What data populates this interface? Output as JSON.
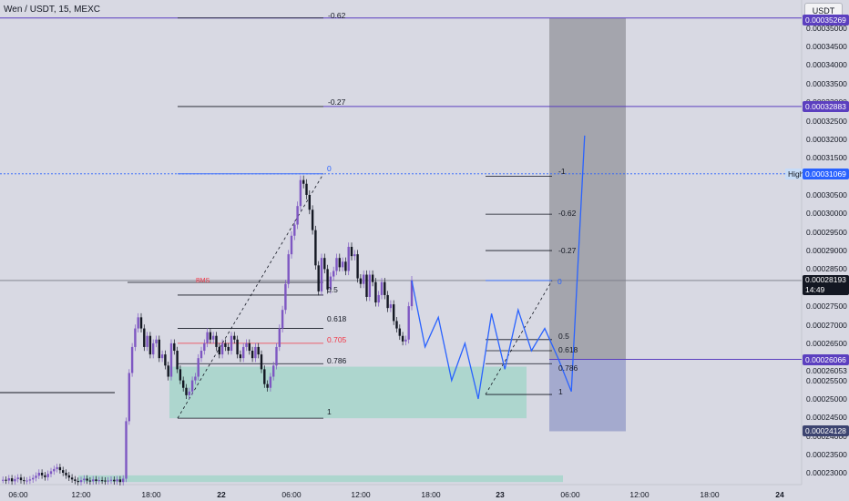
{
  "header": {
    "title": "Wen / USDT, 15, MEXC"
  },
  "toolbar": {
    "currency_button": "USDT"
  },
  "axis": {
    "price_ticks": [
      "0.00035000",
      "0.00034500",
      "0.00034000",
      "0.00033500",
      "0.00033000",
      "0.00032500",
      "0.00032000",
      "0.00031500",
      "0.00031000",
      "0.00030500",
      "0.00030000",
      "0.00029500",
      "0.00029000",
      "0.00028500",
      "0.00028000",
      "0.00027500",
      "0.00027000",
      "0.00026500",
      "0.00026000",
      "0.00025500",
      "0.00025000",
      "0.00024500",
      "0.00024000",
      "0.00023500",
      "0.00023000"
    ],
    "time_ticks": [
      "06:00",
      "12:00",
      "18:00",
      "22",
      "06:00",
      "12:00",
      "18:00",
      "23",
      "06:00",
      "12:00",
      "18:00",
      "24"
    ]
  },
  "price_tags": {
    "top": "0.00035269",
    "upper_target": "0.00032883",
    "high": "0.00031069",
    "high_label": "High",
    "current_price": "0.00028193",
    "countdown": "14:49",
    "entry": "0.00026066",
    "entry_alt": "0.00026053",
    "stop": "0.00024128"
  },
  "fib_big": {
    "levels": [
      "-0.62",
      "-0.27",
      "0",
      "0.5",
      "0.618",
      "0.705",
      "0.786",
      "1"
    ]
  },
  "fib_small": {
    "levels": [
      "-1",
      "-0.62",
      "-0.27",
      "0",
      "0.5",
      "0.618",
      "0.786",
      "1"
    ]
  },
  "annotations": {
    "bms": "BMS"
  },
  "colors": {
    "up": "#7e57c2",
    "down": "#131722",
    "line": "#2962ff",
    "zone": "#a8d5cb",
    "accent": "#5b3fbf"
  },
  "chart_data": {
    "type": "candlestick",
    "title": "Wen / USDT, 15, MEXC",
    "ylim": [
      0.0002275,
      0.000354
    ],
    "x_labels": [
      "06:00",
      "12:00",
      "18:00",
      "22",
      "06:00",
      "12:00",
      "18:00",
      "23",
      "06:00",
      "12:00",
      "18:00",
      "24"
    ],
    "close_path": [
      0.0002282,
      0.000228,
      0.0002286,
      0.0002278,
      0.0002284,
      0.0002288,
      0.0002281,
      0.0002279,
      0.000228,
      0.0002283,
      0.0002287,
      0.0002293,
      0.0002301,
      0.0002294,
      0.0002289,
      0.0002298,
      0.0002305,
      0.0002311,
      0.0002316,
      0.0002308,
      0.0002301,
      0.0002294,
      0.0002288,
      0.0002283,
      0.0002279,
      0.0002276,
      0.0002281,
      0.0002285,
      0.000228,
      0.0002278,
      0.0002283,
      0.0002279,
      0.0002281,
      0.000228,
      0.0002278,
      0.000228,
      0.0002282,
      0.0002278,
      0.0002283,
      0.0002276,
      0.0002285,
      0.000244,
      0.000257,
      0.000264,
      0.000269,
      0.000272,
      0.000269,
      0.000264,
      0.000267,
      0.000262,
      0.000265,
      0.000266,
      0.000261,
      0.000262,
      0.000259,
      0.000256,
      0.000265,
      0.000263,
      0.000258,
      0.000255,
      0.000253,
      0.000251,
      0.000252,
      0.000255,
      0.000256,
      0.000261,
      0.000263,
      0.000265,
      0.000268,
      0.000266,
      0.000267,
      0.000264,
      0.000262,
      0.000265,
      0.000264,
      0.000263,
      0.000267,
      0.000266,
      0.000262,
      0.000261,
      0.000264,
      0.000265,
      0.000263,
      0.000261,
      0.000264,
      0.000262,
      0.000258,
      0.000254,
      0.000253,
      0.000256,
      0.000259,
      0.000264,
      0.000269,
      0.000274,
      0.000281,
      0.000289,
      0.000294,
      0.000297,
      0.000302,
      0.000309,
      0.000308,
      0.000305,
      0.000301,
      0.0002955,
      0.000286,
      0.000279,
      0.000288,
      0.000285,
      0.0002795,
      0.000283,
      0.0002845,
      0.000288,
      0.0002855,
      0.000287,
      0.0002845,
      0.000291,
      0.0002885,
      0.000289,
      0.0002825,
      0.000281,
      0.0002835,
      0.0002775,
      0.0002835,
      0.0002815,
      0.000276,
      0.000278,
      0.0002815,
      0.000278,
      0.0002745,
      0.0002755,
      0.000271,
      0.000269,
      0.000267,
      0.0002655,
      0.000266,
      0.000275,
      0.000282
    ],
    "candles_note": "15-minute OHLC candles rendered from close_path",
    "projection_path": [
      0.00028193,
      0.000264,
      0.000272,
      0.000255,
      0.000265,
      0.00025,
      0.000273,
      0.000258,
      0.000274,
      0.000263,
      0.000269,
      0.000261,
      0.000252,
      0.000321
    ],
    "fib_retracement_big": {
      "0": 0.00031069,
      "1": 0.0002448,
      "0.5": 0.000278,
      "0.618": 0.000269,
      "0.705": 0.000265,
      "0.786": 0.0002595,
      "-0.27": 0.00032883,
      "-0.62": 0.00035269
    },
    "fib_retracement_small": {
      "0": 0.00028193,
      "1": 0.0002512,
      "0.5": 0.000266,
      "0.618": 0.000263,
      "0.786": 0.0002595,
      "-0.27": 0.00029,
      "-0.62": 0.0002998,
      "-1": 0.00031
    },
    "levels": {
      "high": 0.00031069,
      "current": 0.00028193,
      "entry": 0.00026066,
      "stop": 0.00024128,
      "target_1": 0.00032883,
      "target_2": 0.00035269
    },
    "zones": {
      "demand_low": 0.0002448,
      "demand_high": 0.0002587,
      "base_low": 0.0002276,
      "base_high": 0.0002294
    },
    "position": {
      "type": "long",
      "entry": 0.00026066,
      "stop": 0.00024128,
      "target": 0.00035269
    }
  }
}
